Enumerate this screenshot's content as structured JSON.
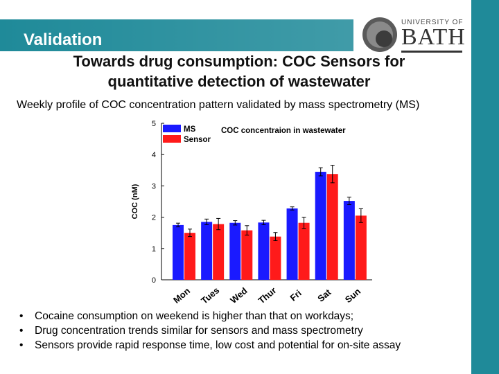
{
  "header": {
    "section_title": "Validation"
  },
  "logo": {
    "top_text": "UNIVERSITY OF",
    "name": "BATH"
  },
  "title": {
    "line1": "Towards drug consumption: COC Sensors for",
    "line2": "quantitative detection of wastewater"
  },
  "subtitle": "Weekly profile of COC concentration pattern validated by mass spectrometry (MS)",
  "colors": {
    "accent": "#1f8a99",
    "ms": "#1a1aff",
    "sensor": "#ff1a1a"
  },
  "chart_data": {
    "type": "bar",
    "title": "COC concentraion in wastewater",
    "xlabel": "",
    "ylabel": "COC (nM)",
    "ylim": [
      0,
      5
    ],
    "yticks": [
      0,
      1,
      2,
      3,
      4,
      5
    ],
    "legend_position": "top-left",
    "categories": [
      "Mon",
      "Tues",
      "Wed",
      "Thur",
      "Fri",
      "Sat",
      "Sun"
    ],
    "series": [
      {
        "name": "MS",
        "color": "#1a1aff",
        "values": [
          1.75,
          1.85,
          1.82,
          1.83,
          2.28,
          3.45,
          2.52
        ],
        "errors": [
          0.06,
          0.09,
          0.07,
          0.07,
          0.05,
          0.13,
          0.12
        ]
      },
      {
        "name": "Sensor",
        "color": "#ff1a1a",
        "values": [
          1.5,
          1.78,
          1.58,
          1.38,
          1.82,
          3.38,
          2.05
        ],
        "errors": [
          0.12,
          0.18,
          0.15,
          0.13,
          0.18,
          0.28,
          0.22
        ]
      }
    ]
  },
  "bullets": [
    "Cocaine consumption on weekend is higher than that on workdays;",
    "Drug concentration trends similar for sensors and mass spectrometry",
    "Sensors provide rapid response time, low cost and potential for on-site assay"
  ],
  "bullet_symbol": "•"
}
